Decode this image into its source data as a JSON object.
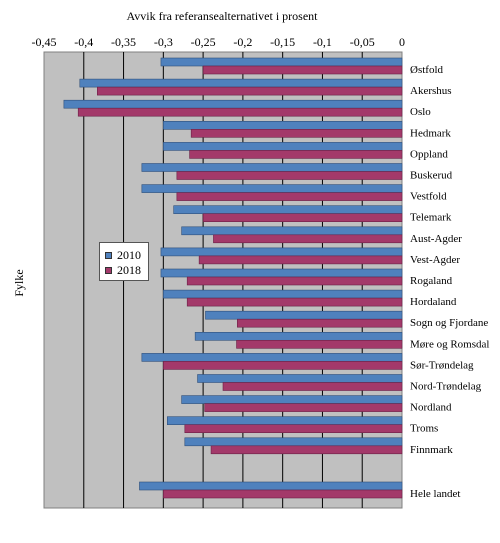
{
  "chart_data": {
    "type": "bar",
    "orientation": "horizontal",
    "title": "Avvik fra referansealternativet i prosent",
    "ylabel": "Fylke",
    "xlim": [
      -0.45,
      0
    ],
    "x_ticks": [
      "-0,45",
      "-0,4",
      "-0,35",
      "-0,3",
      "-0,25",
      "-0,2",
      "-0,15",
      "-0,1",
      "-0,05",
      "0"
    ],
    "grid": true,
    "legend_position": "center-left",
    "categories": [
      "Østfold",
      "Akershus",
      "Oslo",
      "Hedmark",
      "Oppland",
      "Buskerud",
      "Vestfold",
      "Telemark",
      "Aust-Agder",
      "Vest-Agder",
      "Rogaland",
      "Hordaland",
      "Sogn og Fjordane",
      "Møre og Romsdal",
      "Sør-Trøndelag",
      "Nord-Trøndelag",
      "Nordland",
      "Troms",
      "Finnmark",
      "Hele landet"
    ],
    "series": [
      {
        "name": "2010",
        "color": "#4f81bd",
        "values": [
          -0.303,
          -0.405,
          -0.425,
          -0.3,
          -0.3,
          -0.327,
          -0.327,
          -0.287,
          -0.277,
          -0.303,
          -0.303,
          -0.3,
          -0.247,
          -0.26,
          -0.327,
          -0.257,
          -0.277,
          -0.295,
          -0.273,
          -0.33
        ]
      },
      {
        "name": "2018",
        "color": "#a3396a",
        "values": [
          -0.25,
          -0.383,
          -0.407,
          -0.265,
          -0.267,
          -0.283,
          -0.283,
          -0.25,
          -0.237,
          -0.255,
          -0.27,
          -0.27,
          -0.207,
          -0.208,
          -0.3,
          -0.225,
          -0.248,
          -0.273,
          -0.24,
          -0.3
        ]
      }
    ]
  }
}
